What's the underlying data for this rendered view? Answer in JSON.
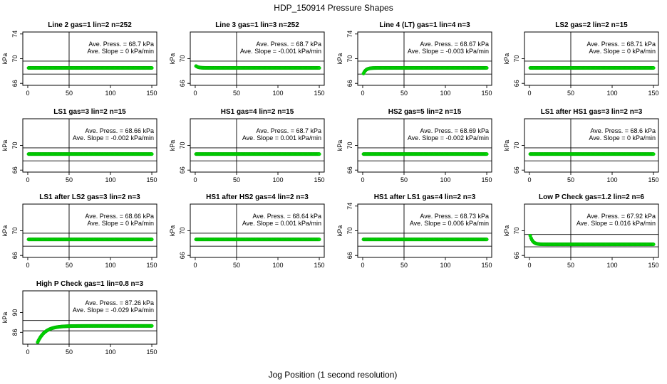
{
  "figure": {
    "title": "HDP_150914  Pressure Shapes",
    "xlabel": "Jog Position (1 second resolution)",
    "point_color": "#00dd00",
    "point_edge_color": "#00aa00"
  },
  "chart_data": [
    {
      "type": "scatter",
      "title": "Line 2 gas=1 lin=2 n=252",
      "ylabel": "kPa",
      "xlim": [
        0,
        150
      ],
      "xticks": [
        0,
        50,
        100,
        150
      ],
      "ylim": [
        66,
        74
      ],
      "yticks": [
        66,
        70,
        74
      ],
      "hlines": [
        67.5,
        69.6
      ],
      "vline": 50,
      "annotation": [
        "Ave. Press. = 68.7  kPa",
        "Ave. Slope = 0  kPa/min"
      ],
      "series": [
        {
          "x_range": [
            1,
            150
          ],
          "y_start": 68.5,
          "y_end": 68.5,
          "shape": "flat"
        }
      ]
    },
    {
      "type": "scatter",
      "title": "Line 3 gas=1 lin=3 n=252",
      "ylabel": "kPa",
      "xlim": [
        0,
        150
      ],
      "xticks": [
        0,
        50,
        100,
        150
      ],
      "ylim": [
        66,
        74
      ],
      "yticks": [
        66,
        70
      ],
      "hlines": [
        67.5,
        69.6
      ],
      "vline": 50,
      "annotation": [
        "Ave. Press. = 68.7  kPa",
        "Ave. Slope = -0.001  kPa/min"
      ],
      "series": [
        {
          "x_range": [
            1,
            150
          ],
          "y_start": 68.8,
          "y_end": 68.5,
          "shape": "decay"
        }
      ]
    },
    {
      "type": "scatter",
      "title": "Line 4 (LT) gas=1 lin=4 n=3",
      "ylabel": "kPa",
      "xlim": [
        0,
        150
      ],
      "xticks": [
        0,
        50,
        100,
        150
      ],
      "ylim": [
        66,
        74
      ],
      "yticks": [
        66,
        70,
        74
      ],
      "hlines": [
        67.5,
        69.6
      ],
      "vline": 50,
      "annotation": [
        "Ave. Press. = 68.67  kPa",
        "Ave. Slope = -0.003  kPa/min"
      ],
      "series": [
        {
          "x_range": [
            1,
            150
          ],
          "y_start": 67.6,
          "y_end": 68.5,
          "shape": "rise"
        }
      ]
    },
    {
      "type": "scatter",
      "title": "LS2 gas=2 lin=2 n=15",
      "ylabel": "kPa",
      "xlim": [
        0,
        150
      ],
      "xticks": [
        0,
        50,
        100,
        150
      ],
      "ylim": [
        66,
        74
      ],
      "yticks": [
        66,
        70
      ],
      "hlines": [
        67.5,
        69.6
      ],
      "vline": 50,
      "annotation": [
        "Ave. Press. = 68.71  kPa",
        "Ave. Slope = 0  kPa/min"
      ],
      "series": [
        {
          "x_range": [
            1,
            150
          ],
          "y_start": 68.5,
          "y_end": 68.5,
          "shape": "flat"
        }
      ]
    },
    {
      "type": "scatter",
      "title": "LS1 gas=3 lin=2 n=15",
      "ylabel": "kPa",
      "xlim": [
        0,
        150
      ],
      "xticks": [
        0,
        50,
        100,
        150
      ],
      "ylim": [
        66,
        74
      ],
      "yticks": [
        66,
        70
      ],
      "hlines": [
        67.5,
        69.6
      ],
      "vline": 50,
      "annotation": [
        "Ave. Press. = 68.66  kPa",
        "Ave. Slope = -0.002  kPa/min"
      ],
      "series": [
        {
          "x_range": [
            1,
            150
          ],
          "y_start": 68.6,
          "y_end": 68.6,
          "shape": "flat"
        }
      ]
    },
    {
      "type": "scatter",
      "title": "HS1 gas=4 lin=2 n=15",
      "ylabel": "kPa",
      "xlim": [
        0,
        150
      ],
      "xticks": [
        0,
        50,
        100,
        150
      ],
      "ylim": [
        66,
        74
      ],
      "yticks": [
        66,
        70
      ],
      "hlines": [
        67.5,
        69.6
      ],
      "vline": 50,
      "annotation": [
        "Ave. Press. = 68.7  kPa",
        "Ave. Slope = 0.001  kPa/min"
      ],
      "series": [
        {
          "x_range": [
            1,
            150
          ],
          "y_start": 68.6,
          "y_end": 68.6,
          "shape": "flat"
        }
      ]
    },
    {
      "type": "scatter",
      "title": "HS2 gas=5 lin=2 n=15",
      "ylabel": "kPa",
      "xlim": [
        0,
        150
      ],
      "xticks": [
        0,
        50,
        100,
        150
      ],
      "ylim": [
        66,
        74
      ],
      "yticks": [
        66,
        70
      ],
      "hlines": [
        67.5,
        69.6
      ],
      "vline": 50,
      "annotation": [
        "Ave. Press. = 68.69  kPa",
        "Ave. Slope = -0.002  kPa/min"
      ],
      "series": [
        {
          "x_range": [
            1,
            150
          ],
          "y_start": 68.6,
          "y_end": 68.6,
          "shape": "flat"
        }
      ]
    },
    {
      "type": "scatter",
      "title": "LS1 after HS1 gas=3 lin=2 n=3",
      "ylabel": "kPa",
      "xlim": [
        0,
        150
      ],
      "xticks": [
        0,
        50,
        100,
        150
      ],
      "ylim": [
        66,
        74
      ],
      "yticks": [
        66,
        70
      ],
      "hlines": [
        67.5,
        69.6
      ],
      "vline": 50,
      "annotation": [
        "Ave. Press. = 68.6  kPa",
        "Ave. Slope = 0  kPa/min"
      ],
      "series": [
        {
          "x_range": [
            1,
            150
          ],
          "y_start": 68.6,
          "y_end": 68.6,
          "shape": "flat"
        }
      ]
    },
    {
      "type": "scatter",
      "title": "LS1 after LS2 gas=3 lin=2 n=3",
      "ylabel": "kPa",
      "xlim": [
        0,
        150
      ],
      "xticks": [
        0,
        50,
        100,
        150
      ],
      "ylim": [
        66,
        74
      ],
      "yticks": [
        66,
        70
      ],
      "hlines": [
        67.5,
        69.6
      ],
      "vline": 50,
      "annotation": [
        "Ave. Press. = 68.66  kPa",
        "Ave. Slope = 0  kPa/min"
      ],
      "series": [
        {
          "x_range": [
            1,
            150
          ],
          "y_start": 68.6,
          "y_end": 68.6,
          "shape": "flat"
        }
      ]
    },
    {
      "type": "scatter",
      "title": "HS1 after HS2 gas=4 lin=2 n=3",
      "ylabel": "kPa",
      "xlim": [
        0,
        150
      ],
      "xticks": [
        0,
        50,
        100,
        150
      ],
      "ylim": [
        66,
        74
      ],
      "yticks": [
        66,
        70
      ],
      "hlines": [
        67.5,
        69.6
      ],
      "vline": 50,
      "annotation": [
        "Ave. Press. = 68.64  kPa",
        "Ave. Slope = 0.001  kPa/min"
      ],
      "series": [
        {
          "x_range": [
            1,
            150
          ],
          "y_start": 68.6,
          "y_end": 68.6,
          "shape": "flat"
        }
      ]
    },
    {
      "type": "scatter",
      "title": "HS1 after LS1 gas=4 lin=2 n=3",
      "ylabel": "kPa",
      "xlim": [
        0,
        150
      ],
      "xticks": [
        0,
        50,
        100,
        150
      ],
      "ylim": [
        66,
        74
      ],
      "yticks": [
        66,
        70,
        74
      ],
      "hlines": [
        67.5,
        69.6
      ],
      "vline": 50,
      "annotation": [
        "Ave. Press. = 68.73  kPa",
        "Ave. Slope = 0.006  kPa/min"
      ],
      "series": [
        {
          "x_range": [
            1,
            150
          ],
          "y_start": 68.6,
          "y_end": 68.6,
          "shape": "flat"
        }
      ]
    },
    {
      "type": "scatter",
      "title": "Low P Check gas=1.2 lin=2 n=6",
      "ylabel": "kPa",
      "xlim": [
        0,
        150
      ],
      "xticks": [
        0,
        50,
        100,
        150
      ],
      "ylim": [
        66,
        74
      ],
      "yticks": [
        66,
        70
      ],
      "hlines": [
        67.4,
        69.4
      ],
      "vline": 50,
      "annotation": [
        "Ave. Press. = 67.92  kPa",
        "Ave. Slope = 0.016  kPa/min"
      ],
      "series": [
        {
          "x_range": [
            1,
            150
          ],
          "y_start": 69.2,
          "y_end": 67.8,
          "shape": "decay"
        }
      ]
    },
    {
      "type": "scatter",
      "title": "High P Check gas=1 lin=0.8 n=3",
      "ylabel": "kPa",
      "xlim": [
        0,
        150
      ],
      "xticks": [
        0,
        50,
        100,
        150
      ],
      "ylim": [
        84,
        94
      ],
      "yticks": [
        86,
        90
      ],
      "hlines": [
        86.3,
        88.4
      ],
      "vline": 50,
      "annotation": [
        "Ave. Press. = 87.26  kPa",
        "Ave. Slope = -0.029  kPa/min"
      ],
      "series": [
        {
          "x_range": [
            12,
            150
          ],
          "y_start": 84.0,
          "y_end": 87.3,
          "shape": "rise"
        }
      ]
    }
  ]
}
